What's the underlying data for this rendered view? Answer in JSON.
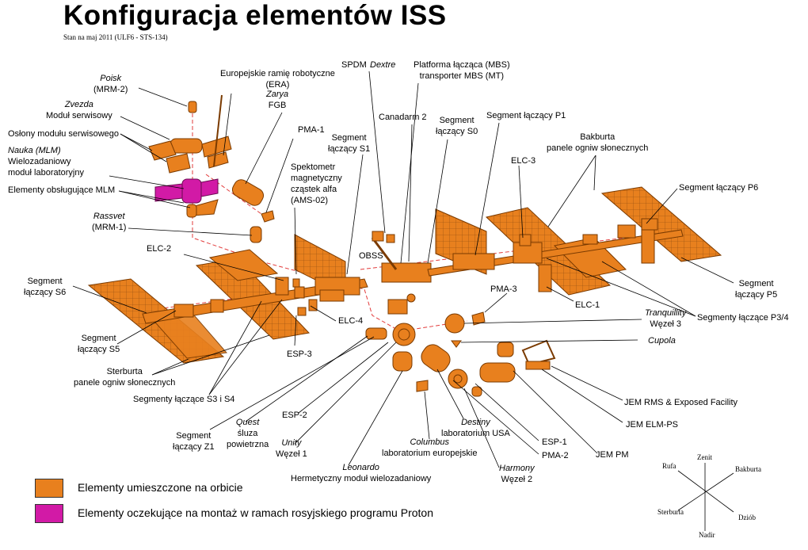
{
  "title": "Konfiguracja elementów ISS",
  "subtitle": "Stan na maj 2011 (ULF6 - STS-134)",
  "colors": {
    "orbit": "#e8801e",
    "orbit_stroke": "#7a3a00",
    "proton": "#d21aa6",
    "leader": "#000000",
    "dashed": "#e23b3b"
  },
  "labels": {
    "poisk": {
      "italic": "Poisk",
      "plain": "(MRM-2)"
    },
    "era": {
      "line1": "Europejskie ramię robotyczne",
      "line2": "(ERA)"
    },
    "zarya": {
      "italic": "Zarya",
      "plain": "FGB"
    },
    "zvezda": {
      "italic": "Zvezda",
      "plain": "Moduł serwisowy"
    },
    "oslony": {
      "text": "Osłony modułu serwisowego"
    },
    "nauka": {
      "italic": "Nauka (MLM)",
      "line2": "Wielozadaniowy",
      "line3": "moduł laboratoryjny"
    },
    "mlm_elements": {
      "text": "Elementy obsługujące MLM"
    },
    "rassvet": {
      "italic": "Rassvet",
      "plain": "(MRM-1)"
    },
    "pma1": {
      "text": "PMA-1"
    },
    "ams": {
      "line1": "Spektometr",
      "line2": "magnetyczny",
      "line3": "cząstek alfa",
      "line4": "(AMS-02)"
    },
    "s1": {
      "line1": "Segment",
      "line2": "łączący S1"
    },
    "spdm": {
      "plain": "SPDM",
      "italic": "Dextre"
    },
    "mbs": {
      "line1": "Platforma łącząca (MBS)",
      "line2": "transporter MBS (MT)"
    },
    "canadarm": {
      "text": "Canadarm 2"
    },
    "s0": {
      "line1": "Segment",
      "line2": "łączący S0"
    },
    "p1": {
      "text": "Segment łączący P1"
    },
    "bakburta_panels": {
      "line1": "Bakburta",
      "line2": "panele ogniw słonecznych"
    },
    "elc3": {
      "text": "ELC-3"
    },
    "p6": {
      "text": "Segment łączący P6"
    },
    "obss": {
      "text": "OBSS"
    },
    "elc2": {
      "text": "ELC-2"
    },
    "s6": {
      "line1": "Segment",
      "line2": "łączący S6"
    },
    "s5": {
      "line1": "Segment",
      "line2": "łączący S5"
    },
    "elc4": {
      "text": "ELC-4"
    },
    "esp3": {
      "text": "ESP-3"
    },
    "sterburta_panels": {
      "line1": "Sterburta",
      "line2": "panele ogniw słonecznych"
    },
    "s3s4": {
      "text": "Segmenty łączące S3 i S4"
    },
    "pma3": {
      "text": "PMA-3"
    },
    "p5": {
      "line1": "Segment",
      "line2": "łączący P5"
    },
    "elc1": {
      "text": "ELC-1"
    },
    "p3p4": {
      "text": "Segmenty łączące P3/4"
    },
    "tranquility": {
      "italic": "Tranquillity",
      "plain": "Węzeł 3"
    },
    "cupola": {
      "italic": "Cupola"
    },
    "jem_rms": {
      "text": "JEM RMS & Exposed Facility"
    },
    "jem_elm": {
      "text": "JEM ELM-PS"
    },
    "jem_pm": {
      "text": "JEM PM"
    },
    "z1": {
      "line1": "Segment",
      "line2": "łączący Z1"
    },
    "quest": {
      "italic": "Quest",
      "line2": "śluza",
      "line3": "powietrzna"
    },
    "esp2": {
      "text": "ESP-2"
    },
    "unity": {
      "italic": "Unity",
      "plain": "Węzeł 1"
    },
    "destiny": {
      "italic": "Destiny",
      "plain": "laboratorium USA"
    },
    "columbus": {
      "italic": "Columbus",
      "plain": "laboratorium europejskie"
    },
    "esp1": {
      "text": "ESP-1"
    },
    "pma2": {
      "text": "PMA-2"
    },
    "leonardo": {
      "italic": "Leonardo",
      "plain": "Hermetyczny moduł wielozadaniowy"
    },
    "harmony": {
      "italic": "Harmony",
      "plain": "Węzeł 2"
    }
  },
  "legend": {
    "orbit": "Elementy umieszczone na orbicie",
    "proton": "Elementy oczekujące na montaż w ramach rosyjskiego programu Proton"
  },
  "directions": {
    "zenit": "Zenit",
    "rufa": "Rufa",
    "bakburta": "Bakburta",
    "sterburta": "Sterburta",
    "dziob": "Dziób",
    "nadir": "Nadir"
  }
}
